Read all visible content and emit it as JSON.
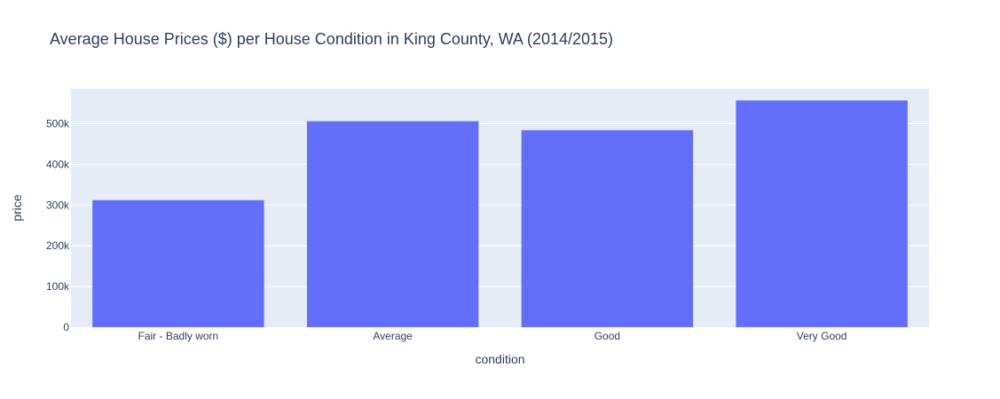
{
  "chart_data": {
    "type": "bar",
    "title": "Average House Prices ($) per House Condition in King County, WA (2014/2015)",
    "xlabel": "condition",
    "ylabel": "price",
    "categories": [
      "Fair - Badly worn",
      "Average",
      "Good",
      "Very Good"
    ],
    "values": [
      312000,
      506000,
      484000,
      557000
    ],
    "ylim": [
      0,
      586000
    ],
    "yticks": [
      0,
      100000,
      200000,
      300000,
      400000,
      500000
    ],
    "ytick_labels": [
      "0",
      "100k",
      "200k",
      "300k",
      "400k",
      "500k"
    ],
    "grid": true,
    "legend": "none",
    "colors": {
      "bar": "#636efa",
      "plot_bg": "#e5ecf6",
      "grid": "#ffffff",
      "text": "#2a3f5f"
    }
  }
}
